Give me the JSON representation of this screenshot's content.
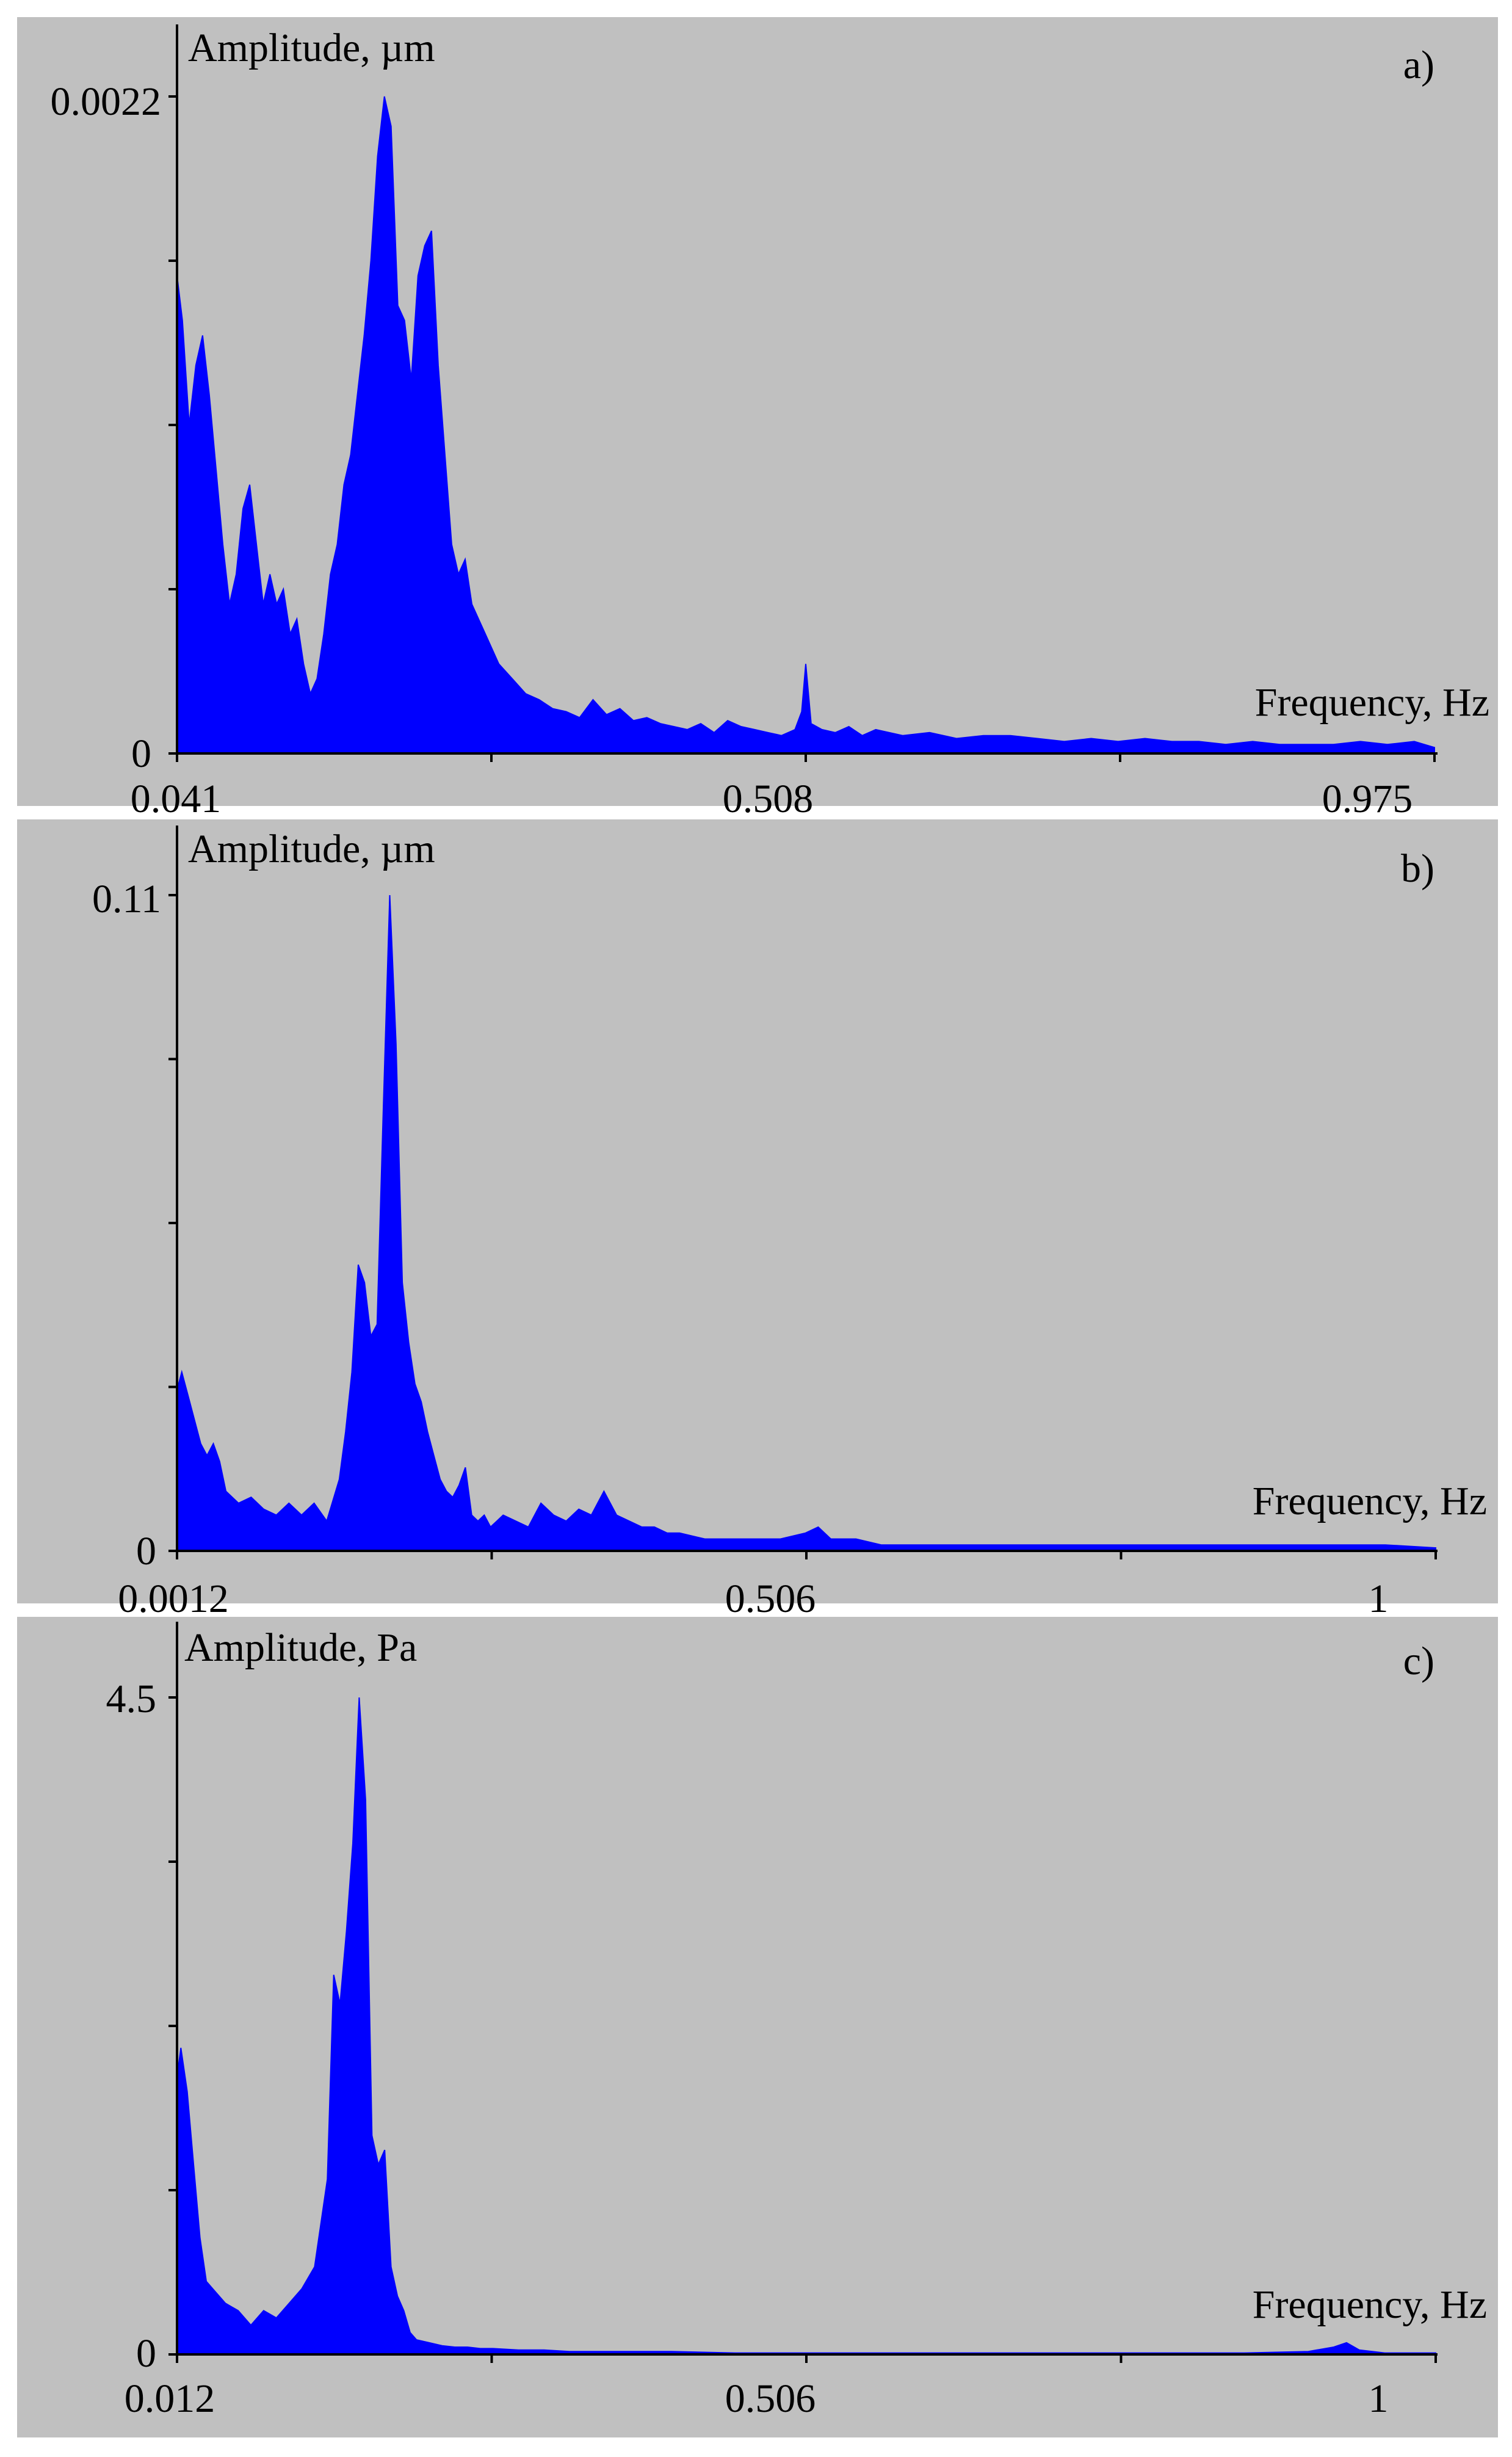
{
  "colors": {
    "background": "#c0c0c0",
    "fill": "#0000ff",
    "axis": "#000000"
  },
  "chart_data": [
    {
      "type": "area",
      "panel_label": "a)",
      "ylabel": "Amplitude, µm",
      "xlabel": "Frequency, Hz",
      "x_tick_labels": [
        "0.041",
        "0.508",
        "0.975"
      ],
      "y_tick_labels": [
        "0",
        "0.0022"
      ],
      "xlim": [
        0.041,
        0.975
      ],
      "ylim": [
        0,
        0.0022
      ],
      "grid": false,
      "series": [
        {
          "x": [
            0.041,
            0.045,
            0.05,
            0.055,
            0.06,
            0.065,
            0.07,
            0.075,
            0.08,
            0.085,
            0.09,
            0.095,
            0.1,
            0.105,
            0.11,
            0.115,
            0.12,
            0.125,
            0.13,
            0.135,
            0.14,
            0.145,
            0.15,
            0.155,
            0.16,
            0.165,
            0.17,
            0.175,
            0.18,
            0.185,
            0.19,
            0.195,
            0.2,
            0.205,
            0.21,
            0.215,
            0.22,
            0.225,
            0.23,
            0.235,
            0.24,
            0.245,
            0.25,
            0.255,
            0.26,
            0.265,
            0.27,
            0.28,
            0.29,
            0.3,
            0.31,
            0.32,
            0.33,
            0.34,
            0.35,
            0.36,
            0.37,
            0.38,
            0.39,
            0.4,
            0.41,
            0.42,
            0.43,
            0.44,
            0.45,
            0.46,
            0.47,
            0.48,
            0.49,
            0.5,
            0.505,
            0.508,
            0.512,
            0.52,
            0.53,
            0.54,
            0.55,
            0.56,
            0.58,
            0.6,
            0.62,
            0.64,
            0.66,
            0.68,
            0.7,
            0.72,
            0.74,
            0.76,
            0.78,
            0.8,
            0.82,
            0.84,
            0.86,
            0.88,
            0.9,
            0.92,
            0.94,
            0.96,
            0.975
          ],
          "y": [
            0.0016,
            0.00145,
            0.0011,
            0.0013,
            0.0014,
            0.0012,
            0.00095,
            0.0007,
            0.0005,
            0.0006,
            0.00082,
            0.0009,
            0.0007,
            0.0005,
            0.0006,
            0.0005,
            0.00055,
            0.0004,
            0.00045,
            0.0003,
            0.0002,
            0.00025,
            0.0004,
            0.0006,
            0.0007,
            0.0009,
            0.001,
            0.0012,
            0.0014,
            0.00165,
            0.002,
            0.0022,
            0.0021,
            0.0015,
            0.00145,
            0.00125,
            0.0016,
            0.0017,
            0.00175,
            0.0013,
            0.001,
            0.0007,
            0.0006,
            0.00065,
            0.0005,
            0.00045,
            0.0004,
            0.0003,
            0.00025,
            0.0002,
            0.00018,
            0.00015,
            0.00014,
            0.00012,
            0.00018,
            0.00013,
            0.00015,
            0.00011,
            0.00012,
            0.0001,
            9e-05,
            8e-05,
            0.0001,
            7e-05,
            0.00011,
            9e-05,
            8e-05,
            7e-05,
            6e-05,
            8e-05,
            0.00014,
            0.0003,
            0.0001,
            8e-05,
            7e-05,
            9e-05,
            6e-05,
            8e-05,
            6e-05,
            7e-05,
            5e-05,
            6e-05,
            6e-05,
            5e-05,
            4e-05,
            5e-05,
            4e-05,
            5e-05,
            4e-05,
            4e-05,
            3e-05,
            4e-05,
            3e-05,
            3e-05,
            3e-05,
            4e-05,
            3e-05,
            4e-05,
            2e-05
          ]
        }
      ]
    },
    {
      "type": "area",
      "panel_label": "b)",
      "ylabel": "Amplitude, µm",
      "xlabel": "Frequency, Hz",
      "x_tick_labels": [
        "0.0012",
        "0.506",
        "1"
      ],
      "y_tick_labels": [
        "0",
        "0.11"
      ],
      "xlim": [
        0.0012,
        1
      ],
      "ylim": [
        0,
        0.11
      ],
      "grid": false,
      "series": [
        {
          "x": [
            0.0012,
            0.005,
            0.01,
            0.015,
            0.02,
            0.025,
            0.03,
            0.035,
            0.04,
            0.045,
            0.05,
            0.06,
            0.07,
            0.08,
            0.09,
            0.1,
            0.11,
            0.12,
            0.13,
            0.135,
            0.14,
            0.145,
            0.15,
            0.155,
            0.16,
            0.165,
            0.17,
            0.175,
            0.18,
            0.185,
            0.19,
            0.195,
            0.2,
            0.205,
            0.21,
            0.215,
            0.22,
            0.225,
            0.23,
            0.235,
            0.24,
            0.245,
            0.25,
            0.255,
            0.26,
            0.27,
            0.28,
            0.29,
            0.3,
            0.31,
            0.32,
            0.33,
            0.34,
            0.35,
            0.36,
            0.37,
            0.38,
            0.39,
            0.4,
            0.42,
            0.44,
            0.46,
            0.48,
            0.5,
            0.51,
            0.52,
            0.54,
            0.56,
            0.6,
            0.64,
            0.68,
            0.72,
            0.76,
            0.8,
            0.84,
            0.88,
            0.92,
            0.96,
            1.0
          ],
          "y": [
            0.027,
            0.03,
            0.026,
            0.022,
            0.018,
            0.016,
            0.018,
            0.015,
            0.01,
            0.009,
            0.008,
            0.009,
            0.007,
            0.006,
            0.008,
            0.006,
            0.008,
            0.005,
            0.012,
            0.02,
            0.03,
            0.048,
            0.045,
            0.036,
            0.038,
            0.075,
            0.11,
            0.085,
            0.045,
            0.035,
            0.028,
            0.025,
            0.02,
            0.016,
            0.012,
            0.01,
            0.009,
            0.011,
            0.014,
            0.006,
            0.005,
            0.006,
            0.004,
            0.005,
            0.006,
            0.005,
            0.004,
            0.008,
            0.006,
            0.005,
            0.007,
            0.006,
            0.01,
            0.006,
            0.005,
            0.004,
            0.004,
            0.003,
            0.003,
            0.002,
            0.002,
            0.002,
            0.002,
            0.003,
            0.004,
            0.002,
            0.002,
            0.001,
            0.001,
            0.001,
            0.001,
            0.001,
            0.001,
            0.001,
            0.001,
            0.001,
            0.001,
            0.001,
            0.0005
          ]
        }
      ]
    },
    {
      "type": "area",
      "panel_label": "c)",
      "ylabel": "Amplitude, Pa",
      "xlabel": "Frequency, Hz",
      "x_tick_labels": [
        "0.012",
        "0.506",
        "1"
      ],
      "y_tick_labels": [
        "0",
        "4.5"
      ],
      "xlim": [
        0.012,
        1
      ],
      "ylim": [
        0,
        4.5
      ],
      "grid": false,
      "series": [
        {
          "x": [
            0.012,
            0.015,
            0.02,
            0.025,
            0.03,
            0.035,
            0.04,
            0.045,
            0.05,
            0.06,
            0.07,
            0.08,
            0.09,
            0.1,
            0.11,
            0.12,
            0.13,
            0.135,
            0.14,
            0.145,
            0.15,
            0.155,
            0.16,
            0.165,
            0.17,
            0.175,
            0.18,
            0.185,
            0.19,
            0.195,
            0.2,
            0.21,
            0.22,
            0.23,
            0.24,
            0.25,
            0.26,
            0.28,
            0.3,
            0.32,
            0.34,
            0.36,
            0.38,
            0.4,
            0.45,
            0.5,
            0.55,
            0.6,
            0.65,
            0.7,
            0.75,
            0.8,
            0.85,
            0.9,
            0.92,
            0.93,
            0.94,
            0.96,
            1.0
          ],
          "y": [
            1.9,
            2.1,
            1.8,
            1.3,
            0.8,
            0.5,
            0.45,
            0.4,
            0.35,
            0.3,
            0.2,
            0.3,
            0.25,
            0.35,
            0.45,
            0.6,
            1.2,
            2.6,
            2.4,
            2.9,
            3.5,
            4.5,
            3.8,
            1.5,
            1.3,
            1.4,
            0.6,
            0.4,
            0.3,
            0.15,
            0.1,
            0.08,
            0.06,
            0.05,
            0.05,
            0.04,
            0.04,
            0.03,
            0.03,
            0.02,
            0.02,
            0.02,
            0.02,
            0.02,
            0.01,
            0.01,
            0.01,
            0.01,
            0.01,
            0.01,
            0.01,
            0.01,
            0.01,
            0.02,
            0.05,
            0.08,
            0.03,
            0.01,
            0.01
          ]
        }
      ]
    }
  ]
}
